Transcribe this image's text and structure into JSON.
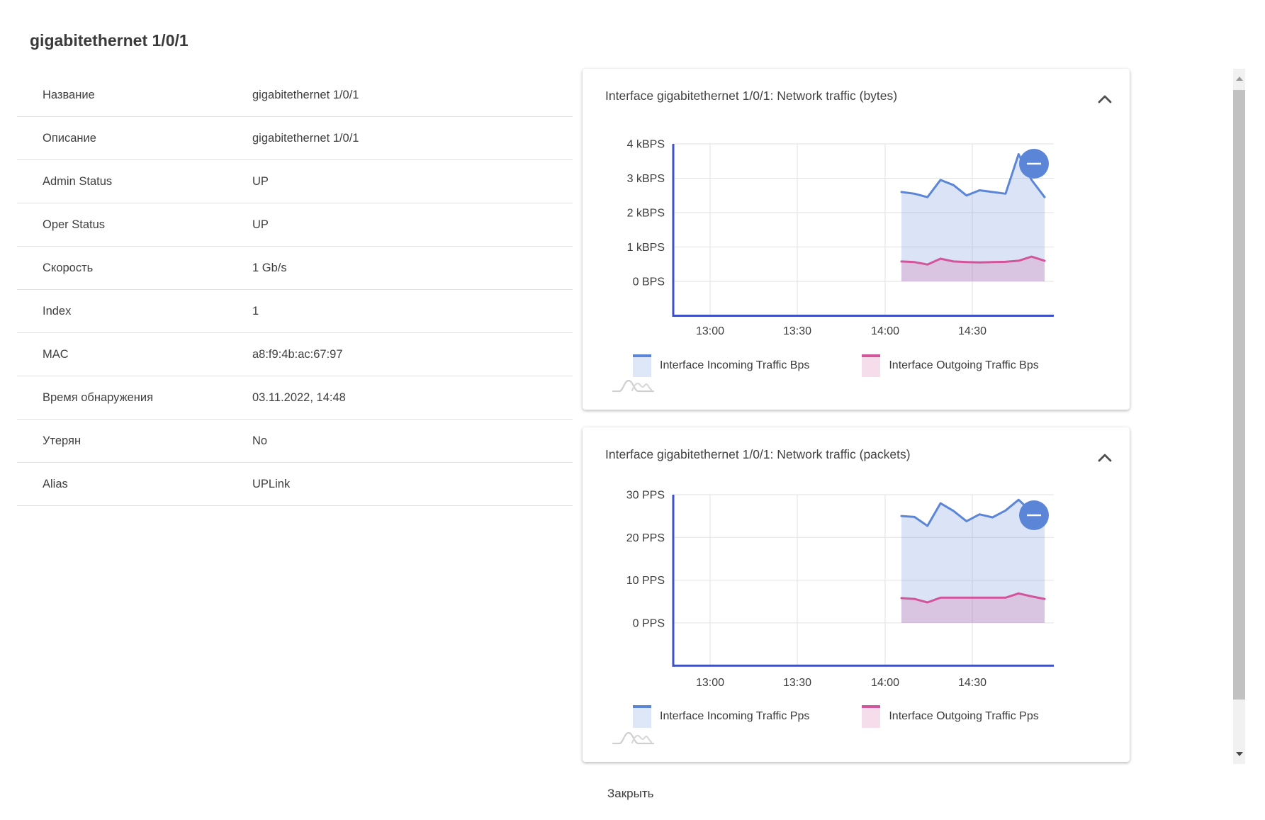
{
  "page": {
    "title": "gigabitethernet 1/0/1"
  },
  "details": {
    "rows": [
      {
        "label": "Название",
        "value": "gigabitethernet 1/0/1"
      },
      {
        "label": "Описание",
        "value": "gigabitethernet 1/0/1"
      },
      {
        "label": "Admin Status",
        "value": "UP"
      },
      {
        "label": "Oper Status",
        "value": "UP"
      },
      {
        "label": "Скорость",
        "value": "1 Gb/s"
      },
      {
        "label": "Index",
        "value": "1"
      },
      {
        "label": "MAC",
        "value": "a8:f9:4b:ac:67:97"
      },
      {
        "label": "Время обнаружения",
        "value": "03.11.2022, 14:48"
      },
      {
        "label": "Утерян",
        "value": "No"
      },
      {
        "label": "Alias",
        "value": "UPLink"
      }
    ]
  },
  "chart_data": [
    {
      "type": "area",
      "title": "Interface gigabitethernet 1/0/1: Network traffic (bytes)",
      "x_ticks": [
        "13:00",
        "13:30",
        "14:00",
        "14:30"
      ],
      "y_tick_labels": [
        "4 kBPS",
        "3 kBPS",
        "2 kBPS",
        "1 kBPS",
        "0 BPS"
      ],
      "y_tick_values": [
        4,
        3,
        2,
        1,
        0
      ],
      "ylim": [
        0,
        4
      ],
      "unit": "kBPS",
      "grid": true,
      "legend_position": "bottom",
      "series": [
        {
          "name": "Interface Incoming Traffic Bps",
          "color": "#5b86d8",
          "values": [
            2.6,
            2.55,
            2.45,
            2.95,
            2.8,
            2.5,
            2.65,
            2.6,
            2.55,
            3.7,
            2.95,
            2.45
          ]
        },
        {
          "name": "Interface Outgoing Traffic Bps",
          "color": "#d2549b",
          "values": [
            0.58,
            0.56,
            0.49,
            0.66,
            0.58,
            0.56,
            0.55,
            0.56,
            0.57,
            0.6,
            0.72,
            0.6
          ]
        }
      ]
    },
    {
      "type": "area",
      "title": "Interface gigabitethernet 1/0/1: Network traffic (packets)",
      "x_ticks": [
        "13:00",
        "13:30",
        "14:00",
        "14:30"
      ],
      "y_tick_labels": [
        "30 PPS",
        "20 PPS",
        "10 PPS",
        "0 PPS"
      ],
      "y_tick_values": [
        30,
        20,
        10,
        0
      ],
      "ylim": [
        0,
        30
      ],
      "unit": "PPS",
      "grid": true,
      "legend_position": "bottom",
      "series": [
        {
          "name": "Interface Incoming Traffic Pps",
          "color": "#5b86d8",
          "values": [
            25,
            24.8,
            22.7,
            28,
            26.2,
            23.8,
            25.4,
            24.7,
            26.3,
            28.8,
            26,
            24.2
          ]
        },
        {
          "name": "Interface Outgoing Traffic Pps",
          "color": "#d2549b",
          "values": [
            5.8,
            5.6,
            4.8,
            5.9,
            5.9,
            5.9,
            5.9,
            5.9,
            5.9,
            6.9,
            6.2,
            5.6
          ]
        }
      ]
    }
  ],
  "controls": {
    "close_label": "Закрыть",
    "zoom_out_symbol": "−",
    "collapse_icon": "chevron-up"
  },
  "colors": {
    "incoming": "#5b86d8",
    "outgoing": "#d2549b",
    "axis": "#3d51c4",
    "gridline": "#e2e2e2",
    "zoom_button": "#5b86d8"
  }
}
